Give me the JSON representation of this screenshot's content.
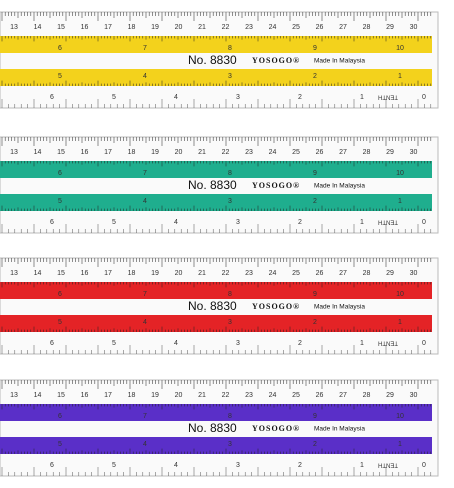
{
  "rulers": [
    {
      "color": "#f3d21c",
      "top_scale": [
        "13",
        "14",
        "15",
        "16",
        "17",
        "18",
        "19",
        "20",
        "21",
        "22",
        "23",
        "24",
        "25",
        "26",
        "27",
        "28",
        "29",
        "30"
      ],
      "upper_band": [
        "6",
        "7",
        "8",
        "9",
        "10"
      ],
      "model": "No. 8830",
      "brand": "YOSOGO®",
      "origin": "Made In Malaysia",
      "lower_band": [
        "5",
        "4",
        "3",
        "2",
        "1"
      ],
      "bottom_scale": [
        "6",
        "5",
        "4",
        "3",
        "2",
        "1",
        "0"
      ],
      "unit": "TENTH"
    },
    {
      "color": "#1fae8e",
      "top_scale": [
        "13",
        "14",
        "15",
        "16",
        "17",
        "18",
        "19",
        "20",
        "21",
        "22",
        "23",
        "24",
        "25",
        "26",
        "27",
        "28",
        "29",
        "30"
      ],
      "upper_band": [
        "6",
        "7",
        "8",
        "9",
        "10"
      ],
      "model": "No. 8830",
      "brand": "YOSOGO®",
      "origin": "Made In Malaysia",
      "lower_band": [
        "5",
        "4",
        "3",
        "2",
        "1"
      ],
      "bottom_scale": [
        "6",
        "5",
        "4",
        "3",
        "2",
        "1",
        "0"
      ],
      "unit": "TENTH"
    },
    {
      "color": "#e42326",
      "top_scale": [
        "13",
        "14",
        "15",
        "16",
        "17",
        "18",
        "19",
        "20",
        "21",
        "22",
        "23",
        "24",
        "25",
        "26",
        "27",
        "28",
        "29",
        "30"
      ],
      "upper_band": [
        "6",
        "7",
        "8",
        "9",
        "10"
      ],
      "model": "No. 8830",
      "brand": "YOSOGO®",
      "origin": "Made In Malaysia",
      "lower_band": [
        "5",
        "4",
        "3",
        "2",
        "1"
      ],
      "bottom_scale": [
        "6",
        "5",
        "4",
        "3",
        "2",
        "1",
        "0"
      ],
      "unit": "TENTH"
    },
    {
      "color": "#5a2fc8",
      "top_scale": [
        "13",
        "14",
        "15",
        "16",
        "17",
        "18",
        "19",
        "20",
        "21",
        "22",
        "23",
        "24",
        "25",
        "26",
        "27",
        "28",
        "29",
        "30"
      ],
      "upper_band": [
        "6",
        "7",
        "8",
        "9",
        "10"
      ],
      "model": "No. 8830",
      "brand": "YOSOGO®",
      "origin": "Made In Malaysia",
      "lower_band": [
        "5",
        "4",
        "3",
        "2",
        "1"
      ],
      "bottom_scale": [
        "6",
        "5",
        "4",
        "3",
        "2",
        "1",
        "0"
      ],
      "unit": "TENTH"
    }
  ]
}
